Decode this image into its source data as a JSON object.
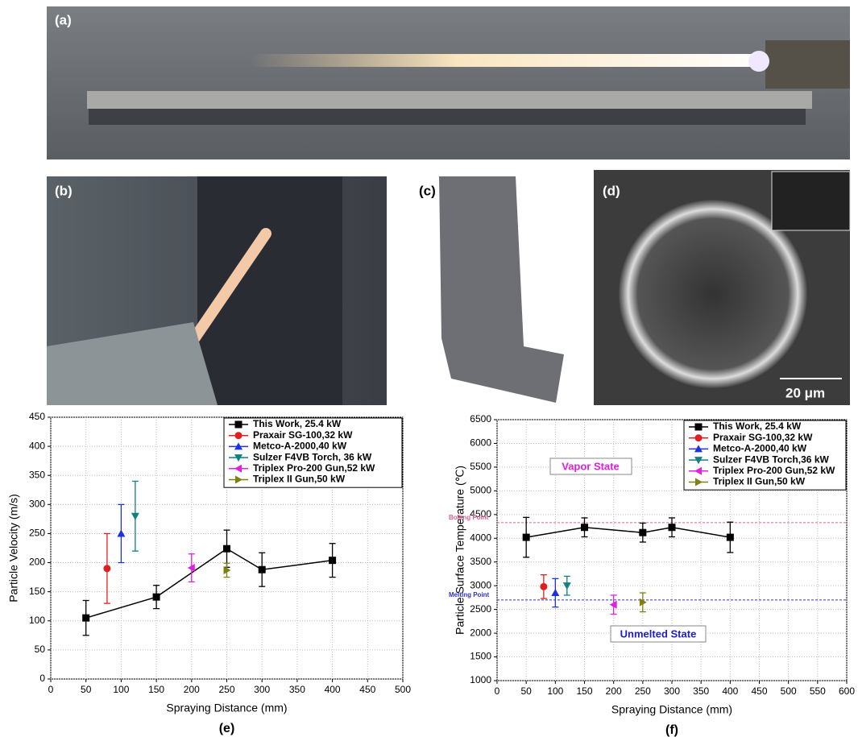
{
  "panel_labels": [
    "(a)",
    "(b)",
    "(c)",
    "(d)"
  ],
  "scale_bar": "20 μm",
  "chart_data": [
    {
      "type": "line",
      "caption": "(e)",
      "x_label": "Spraying Distance (mm)",
      "y_label": "Particle Velocity (m/s)",
      "xlim": [
        0,
        500
      ],
      "xticks": [
        0,
        50,
        100,
        150,
        200,
        250,
        300,
        350,
        400,
        450,
        500
      ],
      "ylim": [
        0,
        450
      ],
      "yticks": [
        0,
        50,
        100,
        150,
        200,
        250,
        300,
        350,
        400,
        450
      ],
      "grid": true,
      "legend": "upper right",
      "series": [
        {
          "name": "This Work, 25.4 kW",
          "color": "#000000",
          "marker": "square",
          "x": [
            50,
            150,
            250,
            300,
            400
          ],
          "values": [
            105,
            141,
            224,
            188,
            204
          ],
          "errors": [
            30,
            20,
            32,
            29,
            29
          ]
        },
        {
          "name": "Praxair SG-100,32 kW",
          "color": "#e02020",
          "marker": "circle",
          "x": [
            80
          ],
          "values": [
            190
          ],
          "errors": [
            60
          ]
        },
        {
          "name": "Metco-A-2000,40 kW",
          "color": "#2030e0",
          "marker": "triangle-up",
          "x": [
            100
          ],
          "values": [
            250
          ],
          "errors": [
            50
          ]
        },
        {
          "name": "Sulzer F4VB Torch, 36 kW",
          "color": "#108080",
          "marker": "triangle-down",
          "x": [
            120
          ],
          "values": [
            280
          ],
          "errors": [
            60
          ]
        },
        {
          "name": "Triplex Pro-200 Gun,52 kW",
          "color": "#e020e0",
          "marker": "triangle-left",
          "x": [
            200
          ],
          "values": [
            191
          ],
          "errors": [
            24
          ]
        },
        {
          "name": "Triplex II Gun,50 kW",
          "color": "#808010",
          "marker": "triangle-right",
          "x": [
            250
          ],
          "values": [
            187
          ],
          "errors": [
            12
          ]
        }
      ]
    },
    {
      "type": "line",
      "caption": "(f)",
      "x_label": "Spraying Distance (mm)",
      "y_label": "Particle Surface Temperature (℃)",
      "xlim": [
        0,
        600
      ],
      "xticks": [
        0,
        50,
        100,
        150,
        200,
        250,
        300,
        350,
        400,
        450,
        500,
        550,
        600
      ],
      "ylim": [
        1000,
        6500
      ],
      "yticks": [
        1000,
        1500,
        2000,
        2500,
        3000,
        3500,
        4000,
        4500,
        5000,
        5500,
        6000,
        6500
      ],
      "grid": true,
      "legend": "upper right",
      "reference_lines": [
        {
          "label": "Boiling Point",
          "value": 4330,
          "color": "#e0609a"
        },
        {
          "label": "Melting Point",
          "value": 2700,
          "color": "#3030d0"
        }
      ],
      "annotations": [
        {
          "text": "Vapor State",
          "color": "#e020e0"
        },
        {
          "text": "Unmelted State",
          "color": "#2020c0"
        }
      ],
      "series": [
        {
          "name": "This Work, 25.4 kW",
          "color": "#000000",
          "marker": "square",
          "x": [
            50,
            150,
            250,
            300,
            400
          ],
          "values": [
            4020,
            4230,
            4120,
            4230,
            4020
          ],
          "errors": [
            420,
            200,
            200,
            200,
            320
          ]
        },
        {
          "name": "Praxair SG-100,32 kW",
          "color": "#e02020",
          "marker": "circle",
          "x": [
            80
          ],
          "values": [
            2980
          ],
          "errors": [
            250
          ]
        },
        {
          "name": "Metco-A-2000,40 kW",
          "color": "#2030e0",
          "marker": "triangle-up",
          "x": [
            100
          ],
          "values": [
            2850
          ],
          "errors": [
            300
          ]
        },
        {
          "name": "Sulzer F4VB Torch,36 kW",
          "color": "#108080",
          "marker": "triangle-down",
          "x": [
            120
          ],
          "values": [
            3000
          ],
          "errors": [
            200
          ]
        },
        {
          "name": "Triplex Pro-200 Gun,52 kW",
          "color": "#e020e0",
          "marker": "triangle-left",
          "x": [
            200
          ],
          "values": [
            2600
          ],
          "errors": [
            200
          ]
        },
        {
          "name": "Triplex II Gun,50 kW",
          "color": "#808010",
          "marker": "triangle-right",
          "x": [
            250
          ],
          "values": [
            2650
          ],
          "errors": [
            200
          ]
        }
      ]
    }
  ]
}
